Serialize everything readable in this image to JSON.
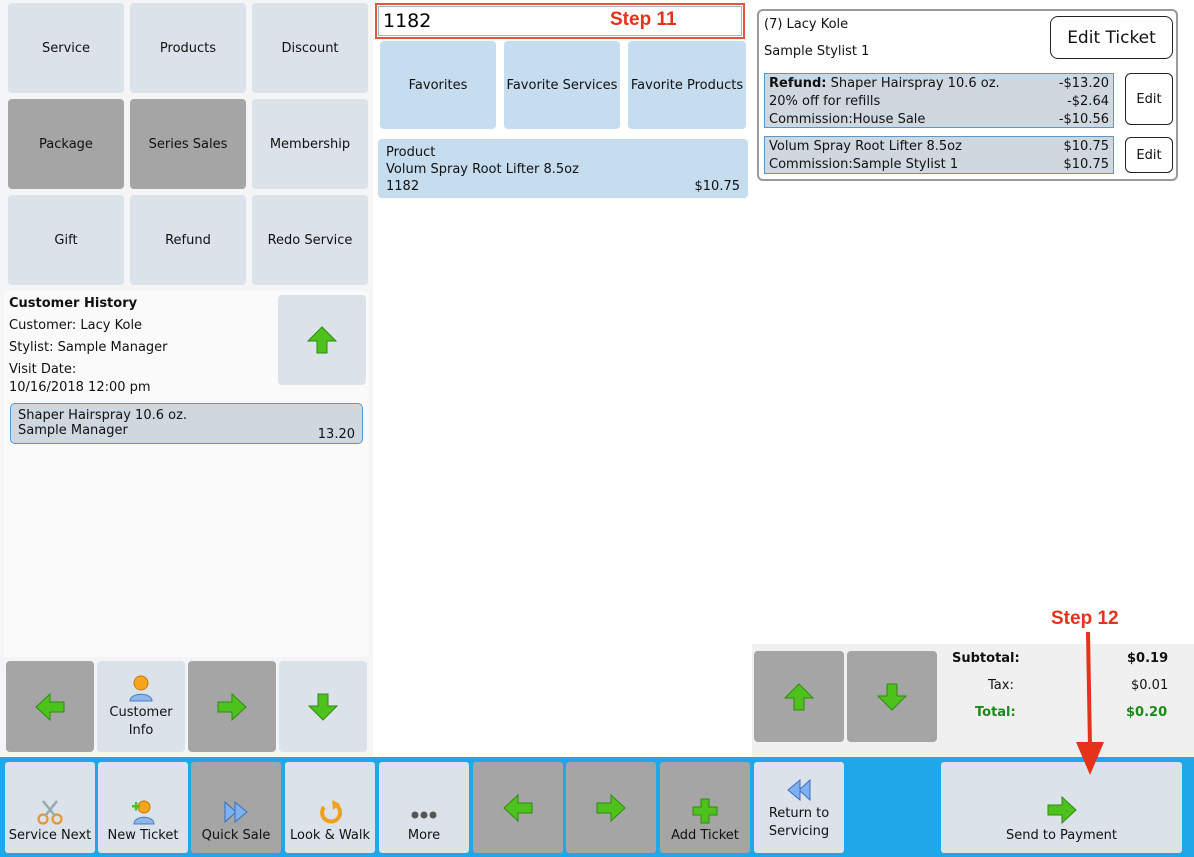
{
  "categories": {
    "service": "Service",
    "products": "Products",
    "discount": "Discount",
    "package": "Package",
    "series_sales": "Series Sales",
    "membership": "Membership",
    "gift": "Gift",
    "refund": "Refund",
    "redo_service": "Redo Service"
  },
  "customer_history": {
    "title": "Customer History",
    "customer": "Customer: Lacy Kole",
    "stylist": "Stylist: Sample Manager",
    "visit_label": "Visit Date:",
    "visit_date": "10/16/2018 12:00 pm",
    "item_name": "Shaper Hairspray 10.6 oz.",
    "item_staff": "Sample Manager",
    "item_amount": "13.20"
  },
  "left_nav": {
    "customer_info": "Customer Info"
  },
  "search": {
    "value": "1182",
    "annotation": "Step 11"
  },
  "favorites": {
    "favorites": "Favorites",
    "favorite_services": "Favorite Services",
    "favorite_products": "Favorite Products"
  },
  "product_result": {
    "type": "Product",
    "name": "Volum Spray Root Lifter 8.5oz",
    "code": "1182",
    "price": "$10.75"
  },
  "ticket": {
    "customer": "(7) Lacy Kole",
    "stylist": "Sample Stylist 1",
    "edit_ticket_label": "Edit Ticket",
    "edit_label": "Edit",
    "item1": {
      "refund_label": "Refund:",
      "name": "Shaper Hairspray 10.6 oz.",
      "amount": "-$13.20",
      "discount": "20% off for refills",
      "discount_amount": "-$2.64",
      "commission": "Commission:House Sale",
      "commission_amount": "-$10.56"
    },
    "item2": {
      "name": "Volum Spray Root Lifter 8.5oz",
      "amount": "$10.75",
      "commission": "Commission:Sample Stylist 1",
      "commission_amount": "$10.75"
    }
  },
  "totals": {
    "subtotal_label": "Subtotal:",
    "subtotal": "$0.19",
    "tax_label": "Tax:",
    "tax": "$0.01",
    "total_label": "Total:",
    "total": "$0.20",
    "total_color": "#1a8a1a"
  },
  "annotation_step12": "Step 12",
  "bottom_bar": {
    "service_next": "Service Next",
    "new_ticket": "New Ticket",
    "quick_sale": "Quick Sale",
    "look_walk": "Look & Walk",
    "more": "More",
    "add_ticket": "Add Ticket",
    "return_servicing": "Return to Servicing",
    "send_payment": "Send to Payment"
  },
  "colors": {
    "accent_bar": "#1ea8e8",
    "annotation_red": "#e5331b",
    "arrow_green": "#4ec21c"
  }
}
